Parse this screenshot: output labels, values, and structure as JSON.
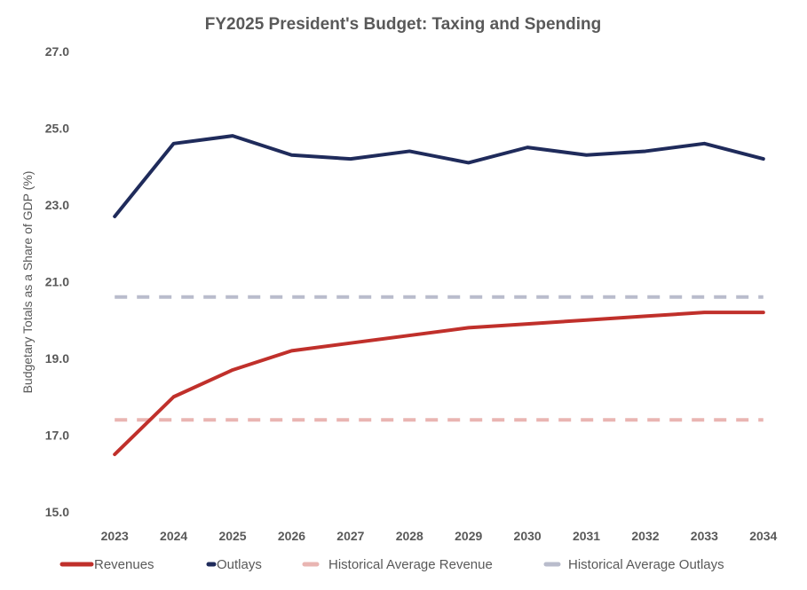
{
  "chart_data": {
    "type": "line",
    "title": "FY2025 President's Budget: Taxing and Spending",
    "xlabel": "",
    "ylabel": "Budgetary Totals as a Share of GDP (%)",
    "ylim": [
      15,
      27
    ],
    "yticks": [
      "15.0",
      "17.0",
      "19.0",
      "21.0",
      "23.0",
      "25.0",
      "27.0"
    ],
    "ytick_values": [
      15,
      17,
      19,
      21,
      23,
      25,
      27
    ],
    "categories": [
      "2023",
      "2024",
      "2025",
      "2026",
      "2027",
      "2028",
      "2029",
      "2030",
      "2031",
      "2032",
      "2033",
      "2034"
    ],
    "grid": false,
    "legend_position": "bottom",
    "series": [
      {
        "name": "Revenues",
        "color": "#c0302b",
        "style": "solid",
        "values": [
          16.5,
          18.0,
          18.7,
          19.2,
          19.4,
          19.6,
          19.8,
          19.9,
          20.0,
          20.1,
          20.2,
          20.2
        ]
      },
      {
        "name": "Outlays",
        "color": "#1f2b5b",
        "style": "solid",
        "values": [
          22.7,
          24.6,
          24.8,
          24.3,
          24.2,
          24.4,
          24.1,
          24.5,
          24.3,
          24.4,
          24.6,
          24.2
        ]
      },
      {
        "name": "Historical Average Revenue",
        "color": "#e9b5b2",
        "style": "dashed",
        "values": [
          17.4,
          17.4,
          17.4,
          17.4,
          17.4,
          17.4,
          17.4,
          17.4,
          17.4,
          17.4,
          17.4,
          17.4
        ]
      },
      {
        "name": "Historical Average Outlays",
        "color": "#b9bccc",
        "style": "dashed",
        "values": [
          20.6,
          20.6,
          20.6,
          20.6,
          20.6,
          20.6,
          20.6,
          20.6,
          20.6,
          20.6,
          20.6,
          20.6
        ]
      }
    ]
  }
}
